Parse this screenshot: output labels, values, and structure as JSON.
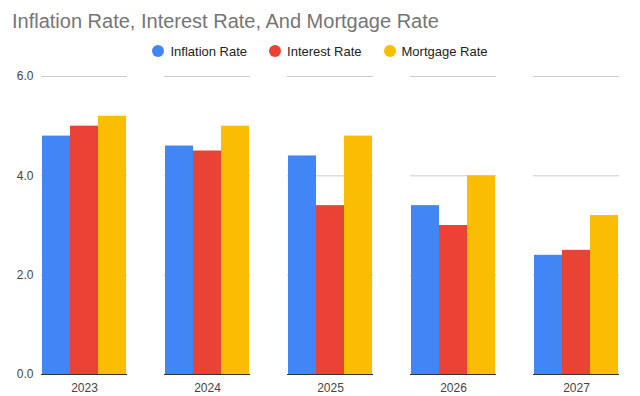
{
  "chart_data": {
    "type": "bar",
    "title": "Inflation Rate, Interest Rate, And Mortgage Rate",
    "categories": [
      "2023",
      "2024",
      "2025",
      "2026",
      "2027"
    ],
    "series": [
      {
        "name": "Inflation Rate",
        "color": "#4285f4",
        "values": [
          4.8,
          4.6,
          4.4,
          3.4,
          2.4
        ]
      },
      {
        "name": "Interest Rate",
        "color": "#ea4335",
        "values": [
          5.0,
          4.5,
          3.4,
          3.0,
          2.5
        ]
      },
      {
        "name": "Mortgage Rate",
        "color": "#fbbc04",
        "values": [
          5.2,
          5.0,
          4.8,
          4.0,
          3.2
        ]
      }
    ],
    "ylim": [
      0,
      6
    ],
    "yticks": [
      0,
      2,
      4,
      6
    ],
    "grid": true,
    "legend": "top"
  }
}
